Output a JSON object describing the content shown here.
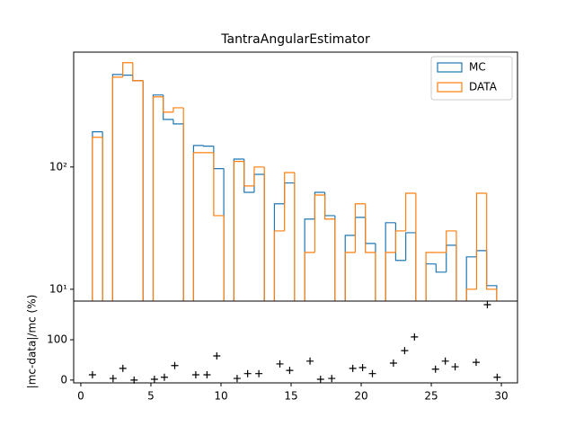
{
  "chart_data": [
    {
      "type": "histogram",
      "title": "TantraAngularEstimator",
      "bins": [
        0.83,
        1.55,
        2.27,
        2.99,
        3.71,
        4.44,
        5.16,
        5.88,
        6.6,
        7.32,
        8.04,
        8.76,
        9.48,
        10.2,
        10.92,
        11.65,
        12.37,
        13.09,
        13.81,
        14.53,
        15.25,
        15.97,
        16.69,
        17.41,
        18.13,
        18.86,
        19.58,
        20.3,
        21.02,
        21.74,
        22.46,
        23.18,
        23.9,
        24.62,
        25.34,
        26.07,
        26.79,
        27.51,
        28.23,
        28.95,
        29.67
      ],
      "series": [
        {
          "name": "MC",
          "color": "#1f77b4",
          "values": [
            194,
            0,
            571,
            564,
            508,
            0,
            388,
            245,
            225,
            0,
            150,
            148,
            97,
            0,
            116,
            62,
            87,
            0,
            50,
            74,
            0,
            37.5,
            62,
            40,
            0,
            27.6,
            38.7,
            23.7,
            0,
            35,
            17.2,
            29,
            0,
            16.1,
            13.8,
            22.9,
            0,
            18.4,
            20.7,
            10.7
          ]
        },
        {
          "name": "DATA",
          "color": "#ff7f0e",
          "values": [
            175,
            0,
            543,
            713,
            508,
            0,
            375,
            281,
            305,
            0,
            131,
            131,
            40,
            0,
            111,
            70,
            100,
            0,
            30,
            90,
            0,
            20,
            59,
            37.5,
            0,
            20,
            50,
            20,
            0,
            20,
            30,
            61,
            0,
            20,
            20,
            30,
            0,
            10,
            61,
            10
          ]
        }
      ],
      "xlim": [
        -0.51,
        31.15
      ],
      "ylim": [
        8,
        870
      ],
      "yscale": "log",
      "yticks": [
        {
          "value": 10,
          "label": "10¹"
        },
        {
          "value": 100,
          "label": "10²"
        }
      ],
      "legend": "upper right"
    },
    {
      "type": "scatter",
      "ylabel": "|mc-data|/mc (%)",
      "marker": "+",
      "color": "#000000",
      "x": [
        0.83,
        2.3,
        3.0,
        3.8,
        5.25,
        5.96,
        6.7,
        8.2,
        9.0,
        9.7,
        11.15,
        11.9,
        12.7,
        14.2,
        14.9,
        16.35,
        17.1,
        17.9,
        19.4,
        20.1,
        20.8,
        22.3,
        23.1,
        23.8,
        25.3,
        26.0,
        26.7,
        28.2,
        29.0,
        29.7
      ],
      "values": [
        13,
        4,
        29,
        0,
        2,
        7,
        36,
        13,
        13,
        60,
        4,
        16,
        16,
        40,
        24,
        47,
        2,
        4,
        29,
        31,
        16,
        42,
        73,
        107,
        27,
        47,
        33,
        44,
        187,
        7
      ],
      "xlim": [
        -0.51,
        31.15
      ],
      "ylim": [
        -7,
        196
      ],
      "xticks": [
        0,
        5,
        10,
        15,
        20,
        25,
        30
      ],
      "yticks": [
        0,
        100
      ]
    }
  ]
}
